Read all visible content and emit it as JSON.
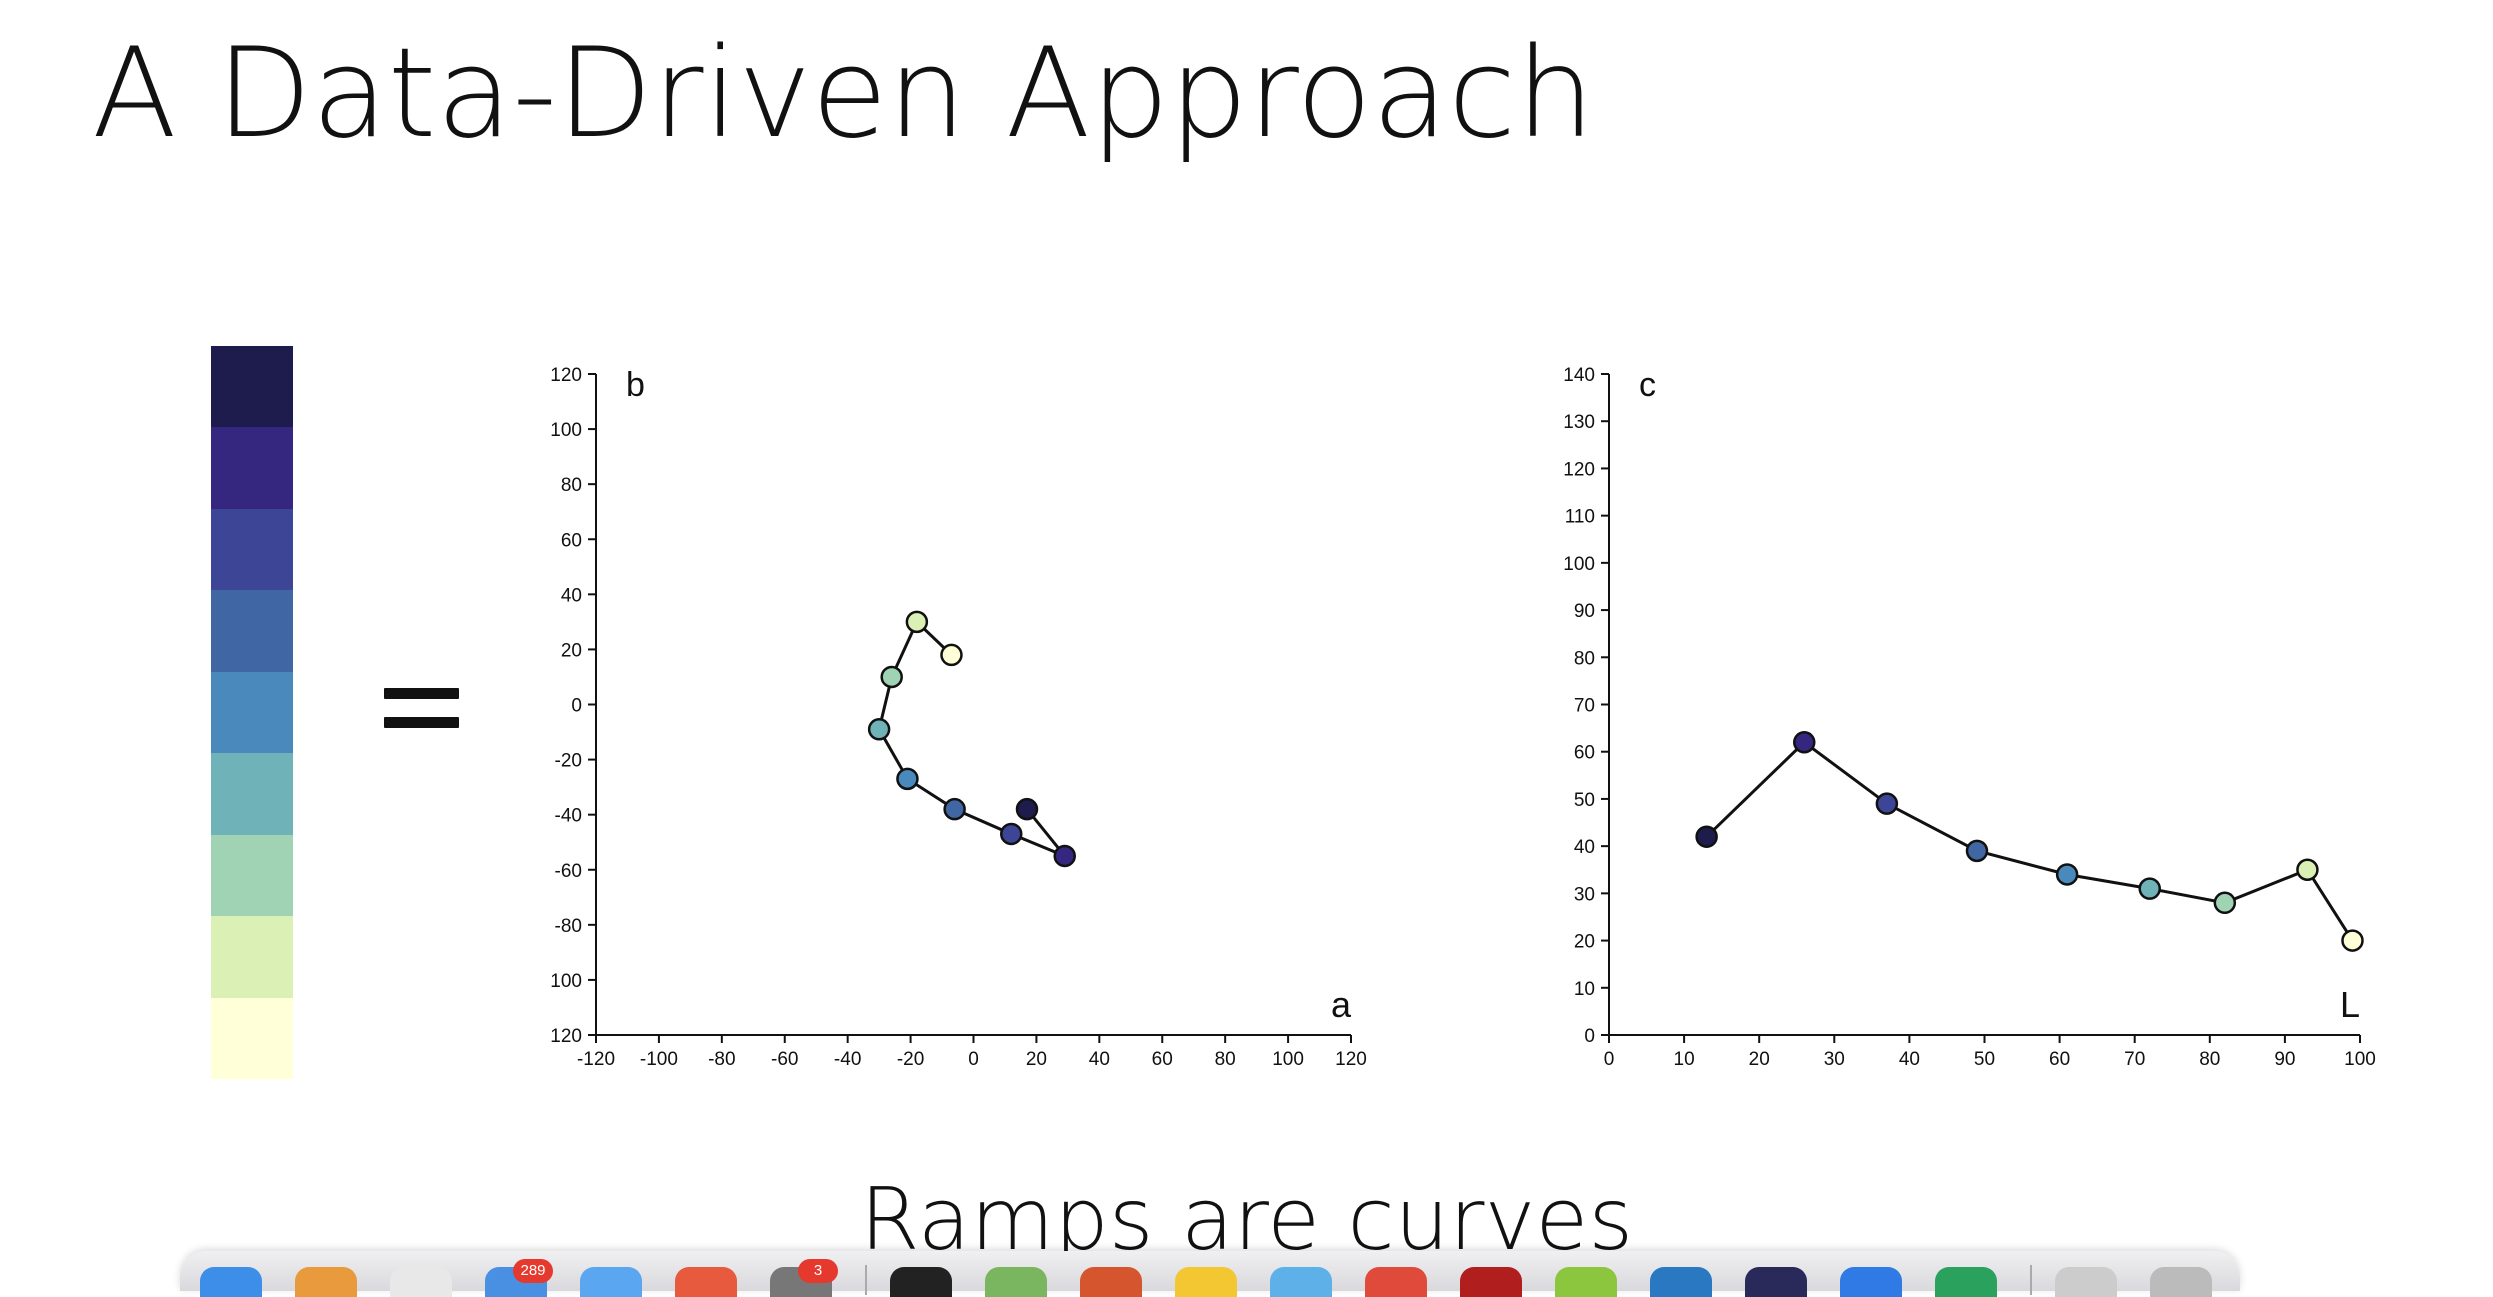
{
  "slide": {
    "title": "A Data-Driven Approach",
    "subtitle": "Ramps are curves"
  },
  "ramp": {
    "colors": [
      "#1e1b4d",
      "#35277f",
      "#3d4596",
      "#4166a4",
      "#4a89bb",
      "#6fb2b7",
      "#9fd3b4",
      "#dbf0b5",
      "#ffffd8"
    ]
  },
  "chart_data": [
    {
      "type": "scatter",
      "panel_label": "b",
      "xlabel": "a",
      "xlim": [
        -120,
        120
      ],
      "ylim": [
        -120,
        120
      ],
      "x_ticks": [
        -120,
        -100,
        -80,
        -60,
        -40,
        -20,
        0,
        20,
        40,
        60,
        80,
        100,
        120
      ],
      "y_ticks": [
        120,
        100,
        80,
        60,
        40,
        20,
        0,
        -20,
        -40,
        -60,
        -80,
        100,
        120
      ],
      "y_tick_labels": [
        "120",
        "100",
        "80",
        "60",
        "40",
        "20",
        "0",
        "-20",
        "-40",
        "-60",
        "-80",
        "100",
        "120"
      ],
      "points": [
        {
          "x": 17,
          "y": -38,
          "color": "#1e1b4d"
        },
        {
          "x": 29,
          "y": -55,
          "color": "#35277f"
        },
        {
          "x": 12,
          "y": -47,
          "color": "#3d4596"
        },
        {
          "x": -6,
          "y": -38,
          "color": "#4166a4"
        },
        {
          "x": -21,
          "y": -27,
          "color": "#4a89bb"
        },
        {
          "x": -30,
          "y": -9,
          "color": "#6fb2b7"
        },
        {
          "x": -26,
          "y": 10,
          "color": "#9fd3b4"
        },
        {
          "x": -18,
          "y": 30,
          "color": "#dbf0b5"
        },
        {
          "x": -7,
          "y": 18,
          "color": "#ffffd8"
        }
      ]
    },
    {
      "type": "line",
      "panel_label": "c",
      "xlabel": "L",
      "xlim": [
        0,
        100
      ],
      "ylim": [
        0,
        140
      ],
      "x_ticks": [
        0,
        10,
        20,
        30,
        40,
        50,
        60,
        70,
        80,
        90,
        100
      ],
      "y_ticks": [
        0,
        10,
        20,
        30,
        40,
        50,
        60,
        70,
        80,
        90,
        100,
        110,
        120,
        130,
        140
      ],
      "points": [
        {
          "x": 13,
          "y": 42,
          "color": "#1e1b4d"
        },
        {
          "x": 26,
          "y": 62,
          "color": "#35277f"
        },
        {
          "x": 37,
          "y": 49,
          "color": "#3d4596"
        },
        {
          "x": 49,
          "y": 39,
          "color": "#4166a4"
        },
        {
          "x": 61,
          "y": 34,
          "color": "#4a89bb"
        },
        {
          "x": 72,
          "y": 31,
          "color": "#6fb2b7"
        },
        {
          "x": 82,
          "y": 28,
          "color": "#9fd3b4"
        },
        {
          "x": 93,
          "y": 35,
          "color": "#dbf0b5"
        },
        {
          "x": 99,
          "y": 20,
          "color": "#ffffd8"
        }
      ]
    }
  ],
  "dock": {
    "badges": [
      "289",
      "3"
    ]
  }
}
